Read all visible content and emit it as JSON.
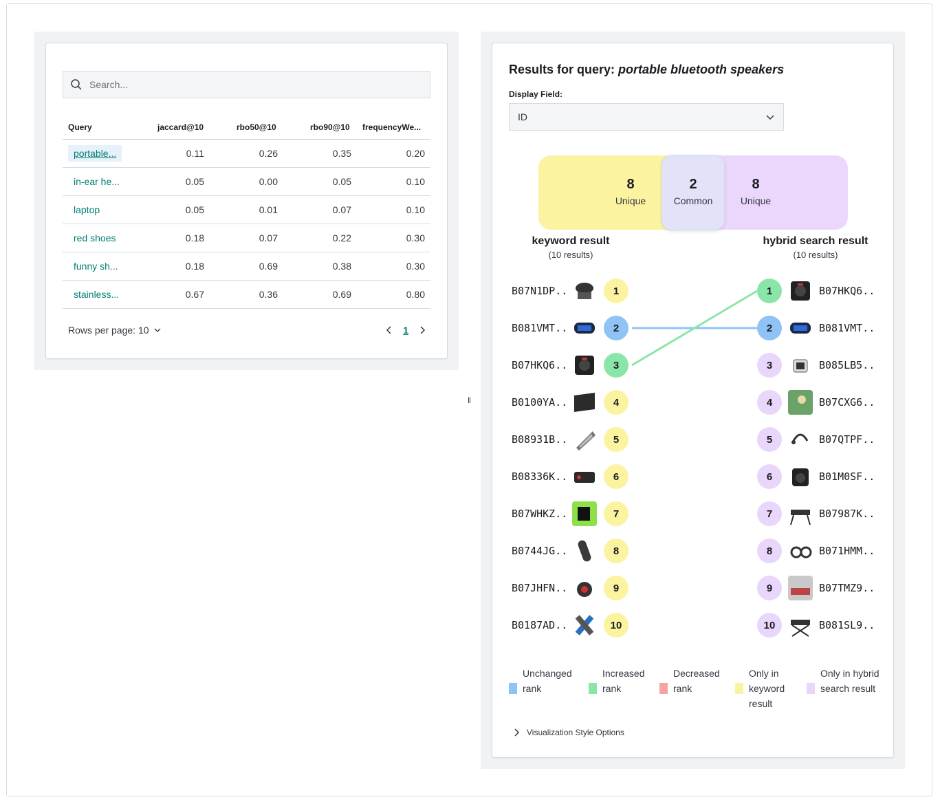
{
  "left": {
    "search_placeholder": "Search...",
    "columns": [
      "Query",
      "jaccard@10",
      "rbo50@10",
      "rbo90@10",
      "frequencyWe..."
    ],
    "rows": [
      {
        "query": "portable...",
        "jaccard": "0.11",
        "rbo50": "0.26",
        "rbo90": "0.35",
        "freq": "0.20",
        "selected": true
      },
      {
        "query": "in-ear he...",
        "jaccard": "0.05",
        "rbo50": "0.00",
        "rbo90": "0.05",
        "freq": "0.10"
      },
      {
        "query": "laptop",
        "jaccard": "0.05",
        "rbo50": "0.01",
        "rbo90": "0.07",
        "freq": "0.10"
      },
      {
        "query": "red shoes",
        "jaccard": "0.18",
        "rbo50": "0.07",
        "rbo90": "0.22",
        "freq": "0.30"
      },
      {
        "query": "funny sh...",
        "jaccard": "0.18",
        "rbo50": "0.69",
        "rbo90": "0.38",
        "freq": "0.30"
      },
      {
        "query": "stainless...",
        "jaccard": "0.67",
        "rbo50": "0.36",
        "rbo90": "0.69",
        "freq": "0.80"
      }
    ],
    "rows_per_page": "Rows per page: 10",
    "current_page": "1"
  },
  "right": {
    "title_prefix": "Results for query: ",
    "query": "portable bluetooth speakers",
    "display_field_label": "Display Field:",
    "display_field_value": "ID",
    "venn": {
      "left_count": "8",
      "left_label": "Unique",
      "common_count": "2",
      "common_label": "Common",
      "right_count": "8",
      "right_label": "Unique"
    },
    "keyword_title": "keyword result",
    "keyword_sub": "(10 results)",
    "hybrid_title": "hybrid search result",
    "hybrid_sub": "(10 results)",
    "keyword_items": [
      {
        "id": "B07N1DP...",
        "rank": "1",
        "status": "only"
      },
      {
        "id": "B081VMT...",
        "rank": "2",
        "status": "unchanged"
      },
      {
        "id": "B07HKQ6...",
        "rank": "3",
        "status": "increased"
      },
      {
        "id": "B0100YA...",
        "rank": "4",
        "status": "only"
      },
      {
        "id": "B08931B...",
        "rank": "5",
        "status": "only"
      },
      {
        "id": "B08336K...",
        "rank": "6",
        "status": "only"
      },
      {
        "id": "B07WHKZ...",
        "rank": "7",
        "status": "only"
      },
      {
        "id": "B0744JG...",
        "rank": "8",
        "status": "only"
      },
      {
        "id": "B07JHFN...",
        "rank": "9",
        "status": "only"
      },
      {
        "id": "B0187AD...",
        "rank": "10",
        "status": "only"
      }
    ],
    "hybrid_items": [
      {
        "id": "B07HKQ6...",
        "rank": "1",
        "status": "increased"
      },
      {
        "id": "B081VMT...",
        "rank": "2",
        "status": "unchanged"
      },
      {
        "id": "B085LB5...",
        "rank": "3",
        "status": "only"
      },
      {
        "id": "B07CXG6...",
        "rank": "4",
        "status": "only"
      },
      {
        "id": "B07QTPF...",
        "rank": "5",
        "status": "only"
      },
      {
        "id": "B01M0SF...",
        "rank": "6",
        "status": "only"
      },
      {
        "id": "B07987K...",
        "rank": "7",
        "status": "only"
      },
      {
        "id": "B071HMM...",
        "rank": "8",
        "status": "only"
      },
      {
        "id": "B07TMZ9...",
        "rank": "9",
        "status": "only"
      },
      {
        "id": "B081SL9...",
        "rank": "10",
        "status": "only"
      }
    ],
    "legend": [
      {
        "label": "Unchanged rank",
        "color": "#8fc2f5"
      },
      {
        "label": "Increased rank",
        "color": "#8ae6a8"
      },
      {
        "label": "Decreased rank",
        "color": "#f5a3a3"
      },
      {
        "label": "Only in keyword result",
        "color": "#fbf3a0"
      },
      {
        "label": "Only in hybrid search result",
        "color": "#e8d6fb"
      }
    ],
    "style_options": "Visualization Style Options"
  },
  "colors": {
    "link": "#017d73",
    "unchanged": "#8fc2f5",
    "increased": "#8ae6a8",
    "keyword_only": "#fbf3a0",
    "hybrid_only": "#e8d6fb"
  }
}
